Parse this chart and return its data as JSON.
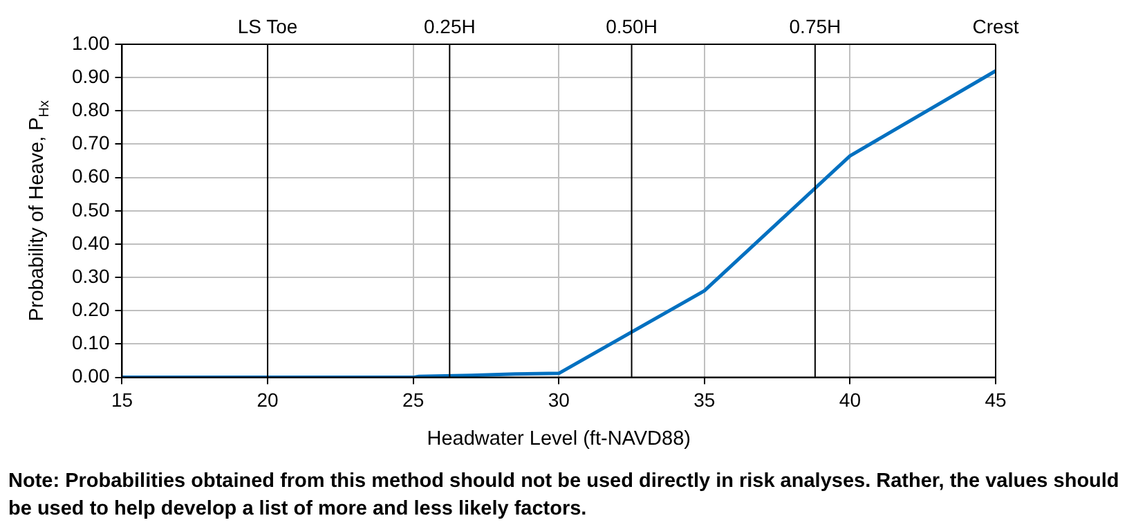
{
  "chart_data": {
    "type": "line",
    "xlabel": "Headwater Level (ft-NAVD88)",
    "ylabel": "Probability of Heave, P$_{Hx}$",
    "x": [
      15,
      25,
      25.2,
      27,
      28.5,
      30,
      35,
      40,
      45
    ],
    "series": [
      {
        "color": "#0070c0",
        "values": [
          0,
          0,
          0.003,
          0.006,
          0.01,
          0.012,
          0.26,
          0.665,
          0.92
        ]
      }
    ],
    "xlim": [
      15,
      45
    ],
    "xticks": [
      15,
      20,
      25,
      30,
      35,
      40,
      45
    ],
    "ylim": [
      0,
      1
    ],
    "yticks": [
      {
        "value": 0,
        "label": "0.00"
      },
      {
        "value": 0.1,
        "label": "0.10"
      },
      {
        "value": 0.2,
        "label": "0.20"
      },
      {
        "value": 0.3,
        "label": "0.30"
      },
      {
        "value": 0.4,
        "label": "0.40"
      },
      {
        "value": 0.5,
        "label": "0.50"
      },
      {
        "value": 0.6,
        "label": "0.60"
      },
      {
        "value": 0.7,
        "label": "0.70"
      },
      {
        "value": 0.8,
        "label": "0.80"
      },
      {
        "value": 0.9,
        "label": "0.90"
      },
      {
        "value": 1,
        "label": "1.00"
      }
    ],
    "ref_lines": [
      {
        "axis": "x",
        "value": 20,
        "label": "LS Toe",
        "color": "#000000"
      },
      {
        "axis": "x",
        "value": 26.25,
        "label": "0.25H",
        "color": "#000000"
      },
      {
        "axis": "x",
        "value": 32.5,
        "label": "0.50H",
        "color": "#000000"
      },
      {
        "axis": "x",
        "value": 38.8,
        "label": "0.75H",
        "color": "#000000"
      },
      {
        "axis": "x",
        "value": 45,
        "label": "Crest",
        "color": "#000000"
      }
    ],
    "grid": true,
    "legend": false,
    "marker": "none",
    "line_style": "solid",
    "annotations": [
      "Note: Probabilities obtained from this method should not be used directly in risk analyses. Rather, the values should be used to help develop a list of more and less likely factors."
    ]
  }
}
